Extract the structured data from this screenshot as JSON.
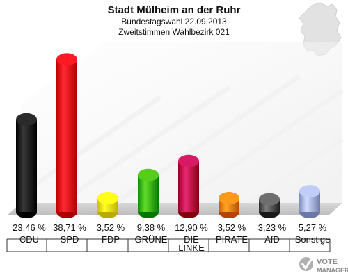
{
  "chart_data": {
    "type": "bar",
    "title": "Stadt Mülheim an der Ruhr",
    "subtitle_lines": [
      "Bundestagswahl 22.09.2013",
      "Zweitstimmen Wahlbezirk 021"
    ],
    "categories": [
      "CDU",
      "SPD",
      "FDP",
      "GRÜNE",
      "DIE LINKE",
      "PIRATE",
      "AfD",
      "Sonstige"
    ],
    "category_lines": [
      [
        "CDU"
      ],
      [
        "SPD"
      ],
      [
        "FDP"
      ],
      [
        "GRÜNE"
      ],
      [
        "DIE",
        "LINKE"
      ],
      [
        "PIRATE"
      ],
      [
        "AfD"
      ],
      [
        "Sonstige"
      ]
    ],
    "values": [
      23.46,
      38.71,
      3.52,
      9.38,
      12.9,
      3.52,
      3.23,
      5.27
    ],
    "value_labels": [
      "23,46 %",
      "38,71 %",
      "3,52 %",
      "9,38 %",
      "12,90 %",
      "3,52 %",
      "3,23 %",
      "5,27 %"
    ],
    "colors": [
      "#111111",
      "#e8000b",
      "#f5e600",
      "#3cb400",
      "#c0004b",
      "#f08000",
      "#555555",
      "#a8b4e0"
    ],
    "ylim": [
      0,
      40
    ],
    "grid": false,
    "legend": "none"
  },
  "brand": {
    "text_line1": "VOTE",
    "text_line2": "MANAGER"
  }
}
